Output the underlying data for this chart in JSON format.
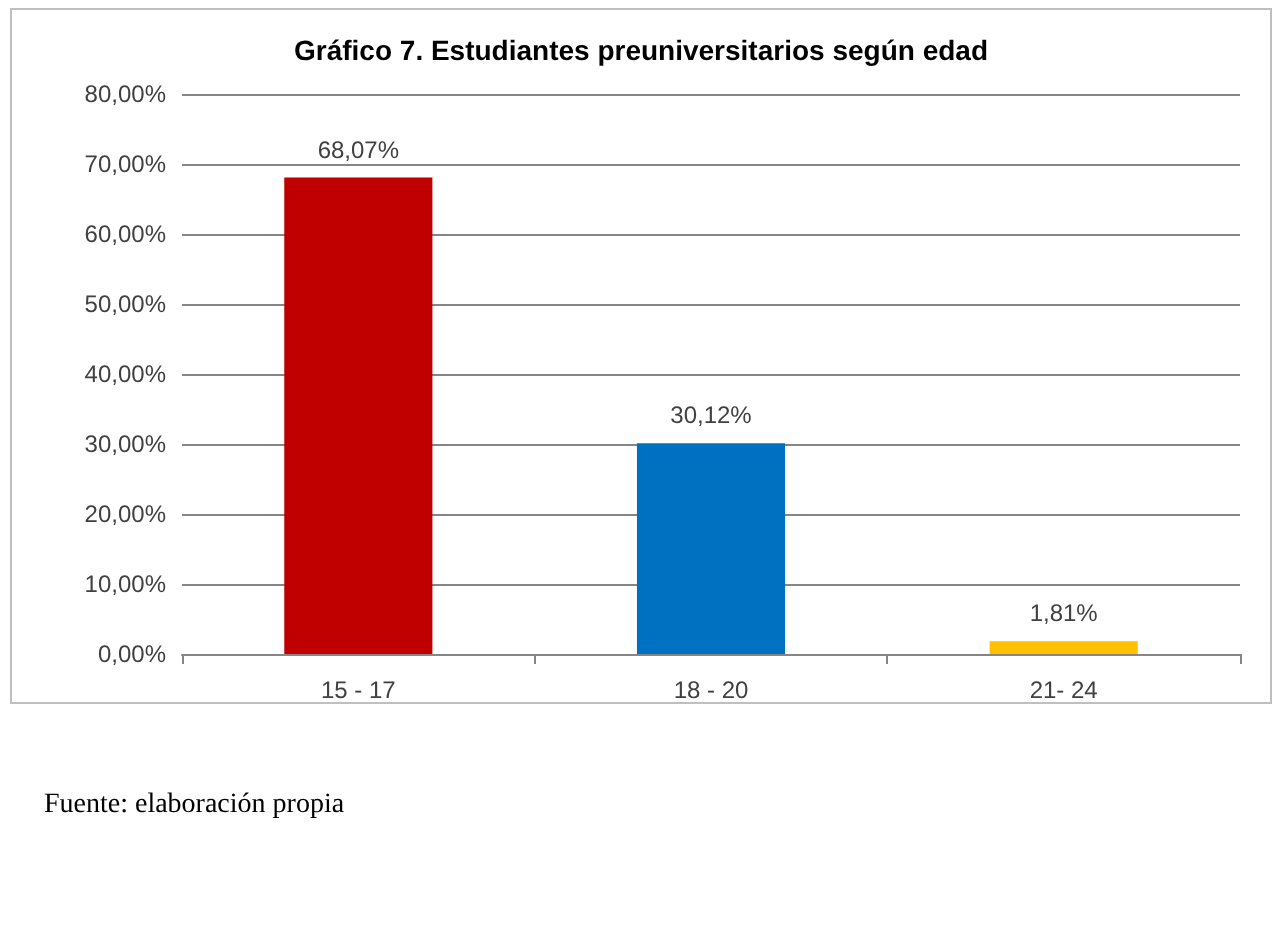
{
  "chart_data": {
    "type": "bar",
    "title": "Gráfico 7. Estudiantes preuniversitarios según edad",
    "categories": [
      "15 - 17",
      "18 - 20",
      "21- 24"
    ],
    "values": [
      68.07,
      30.12,
      1.81
    ],
    "colors": [
      "#c00000",
      "#0070c0",
      "#ffc000"
    ],
    "value_labels": [
      "68,07%",
      "30,12%",
      "1,81%"
    ],
    "ylim": [
      0,
      80
    ],
    "yticks": [
      {
        "value": 0,
        "label": "0,00%"
      },
      {
        "value": 10,
        "label": "10,00%"
      },
      {
        "value": 20,
        "label": "20,00%"
      },
      {
        "value": 30,
        "label": "30,00%"
      },
      {
        "value": 40,
        "label": "40,00%"
      },
      {
        "value": 50,
        "label": "50,00%"
      },
      {
        "value": 60,
        "label": "60,00%"
      },
      {
        "value": 70,
        "label": "70,00%"
      },
      {
        "value": 80,
        "label": "80,00%"
      }
    ],
    "grid": "y",
    "annotations": [
      "Fuente: elaboración propia"
    ]
  }
}
